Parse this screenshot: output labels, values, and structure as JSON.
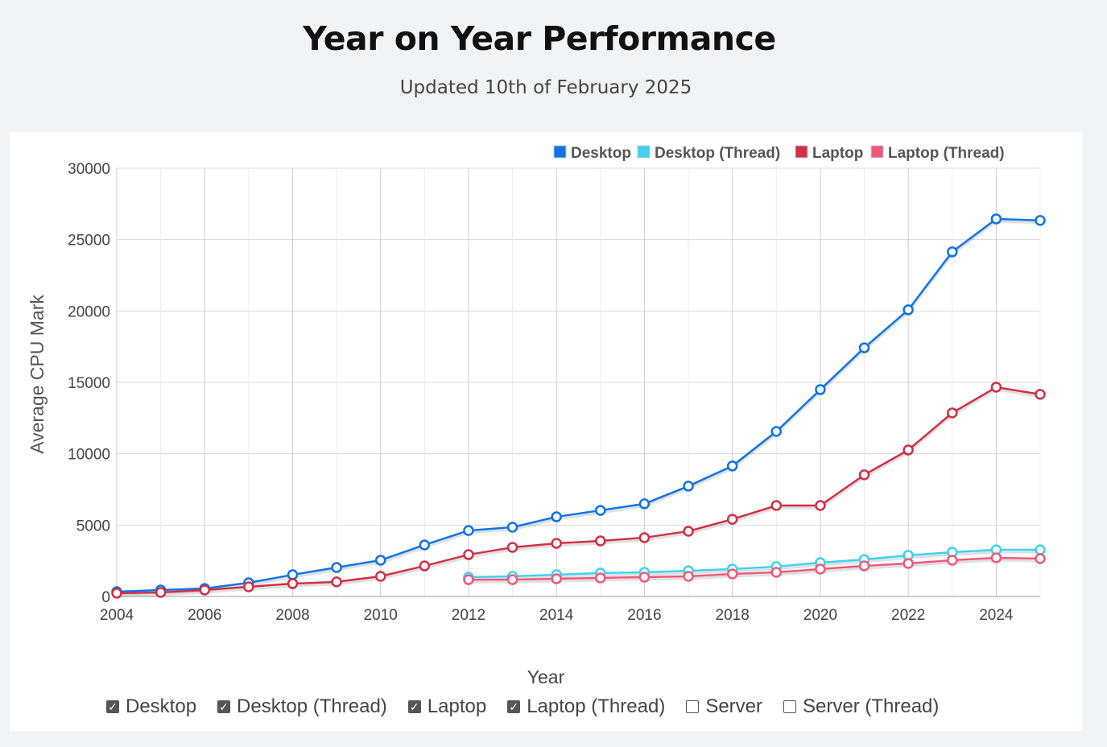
{
  "header": {
    "title": "Year on Year Performance",
    "subtitle": "Updated 10th of February 2025"
  },
  "chart_data": {
    "type": "line",
    "title": "",
    "xlabel": "Year",
    "ylabel": "Average CPU Mark",
    "xlim": [
      2004,
      2025
    ],
    "ylim": [
      0,
      30000
    ],
    "yticks": [
      0,
      5000,
      10000,
      15000,
      20000,
      25000,
      30000
    ],
    "xticks": [
      2004,
      2006,
      2008,
      2010,
      2012,
      2014,
      2016,
      2018,
      2020,
      2022,
      2024
    ],
    "grid": true,
    "legend_position": "top-right",
    "x": [
      2004,
      2005,
      2006,
      2007,
      2008,
      2009,
      2010,
      2011,
      2012,
      2013,
      2014,
      2015,
      2016,
      2017,
      2018,
      2019,
      2020,
      2021,
      2022,
      2023,
      2024,
      2025
    ],
    "series": [
      {
        "name": "Desktop",
        "color": "#0d74e8",
        "values": [
          340,
          450,
          560,
          960,
          1520,
          2030,
          2540,
          3610,
          4620,
          4850,
          5580,
          6030,
          6490,
          7730,
          9140,
          11560,
          14490,
          17420,
          20080,
          24140,
          26450,
          26340
        ]
      },
      {
        "name": "Desktop (Thread)",
        "color": "#3dd1f2",
        "values": [
          null,
          null,
          null,
          null,
          null,
          null,
          null,
          null,
          1350,
          1410,
          1520,
          1640,
          1690,
          1800,
          1920,
          2090,
          2370,
          2590,
          2880,
          3100,
          3270,
          3270
        ]
      },
      {
        "name": "Laptop",
        "color": "#d22f44",
        "values": [
          230,
          280,
          450,
          680,
          900,
          1020,
          1410,
          2140,
          2930,
          3440,
          3720,
          3890,
          4120,
          4570,
          5410,
          6370,
          6370,
          8520,
          10260,
          12860,
          14660,
          14160
        ]
      },
      {
        "name": "Laptop (Thread)",
        "color": "#f0587a",
        "values": [
          null,
          null,
          null,
          null,
          null,
          null,
          null,
          null,
          1180,
          1180,
          1240,
          1300,
          1350,
          1410,
          1580,
          1690,
          1920,
          2140,
          2310,
          2540,
          2710,
          2650
        ]
      }
    ]
  },
  "toggles": [
    {
      "label": "Desktop",
      "checked": true
    },
    {
      "label": "Desktop (Thread)",
      "checked": true
    },
    {
      "label": "Laptop",
      "checked": true
    },
    {
      "label": "Laptop (Thread)",
      "checked": true
    },
    {
      "label": "Server",
      "checked": false
    },
    {
      "label": "Server (Thread)",
      "checked": false
    }
  ]
}
